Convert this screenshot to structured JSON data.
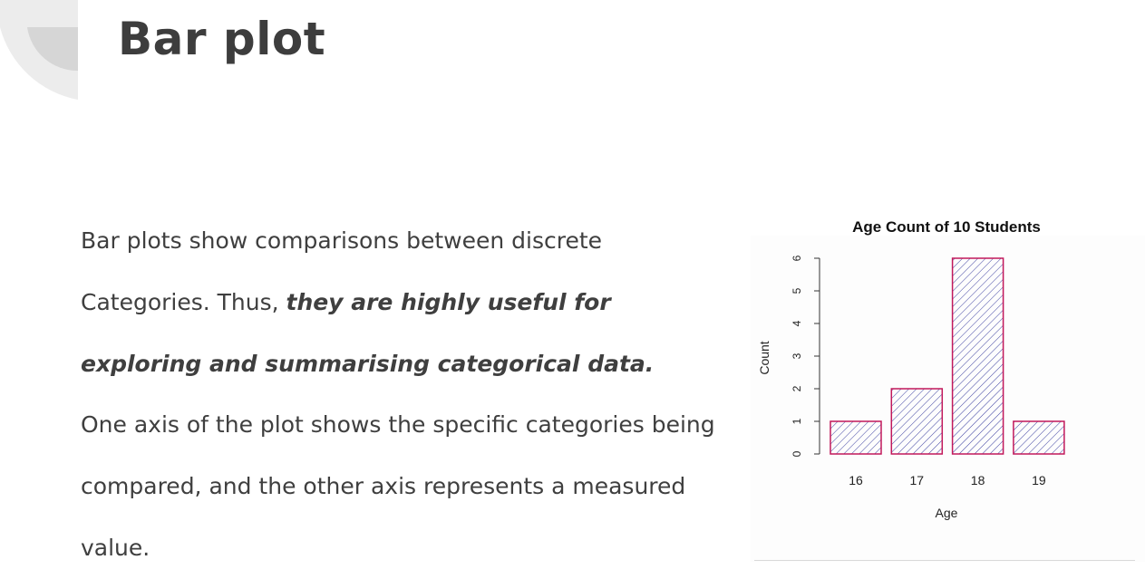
{
  "slide": {
    "title": "Bar plot",
    "paragraph1_plain": "Bar plots show comparisons between discrete Categories. Thus, ",
    "paragraph1_emphasis": "they are highly useful for exploring and summarising categorical data.",
    "paragraph2": "One axis of the plot shows the specific categories being compared, and the other axis represents a measured value."
  },
  "colors": {
    "bar_stroke": "#c2185b",
    "bar_hatch": "#3b3fa0",
    "axis": "#333333",
    "corner_outer": "#ececec",
    "corner_inner": "#d6d6d6"
  },
  "chart_data": {
    "type": "bar",
    "title": "Age Count of 10 Students",
    "xlabel": "Age",
    "ylabel": "Count",
    "categories": [
      "16",
      "17",
      "18",
      "19"
    ],
    "values": [
      1,
      2,
      6,
      1
    ],
    "ylim": [
      0,
      6
    ],
    "yticks": [
      "0",
      "1",
      "2",
      "3",
      "4",
      "5",
      "6"
    ],
    "fill": "diagonal hatching",
    "grid": false
  }
}
